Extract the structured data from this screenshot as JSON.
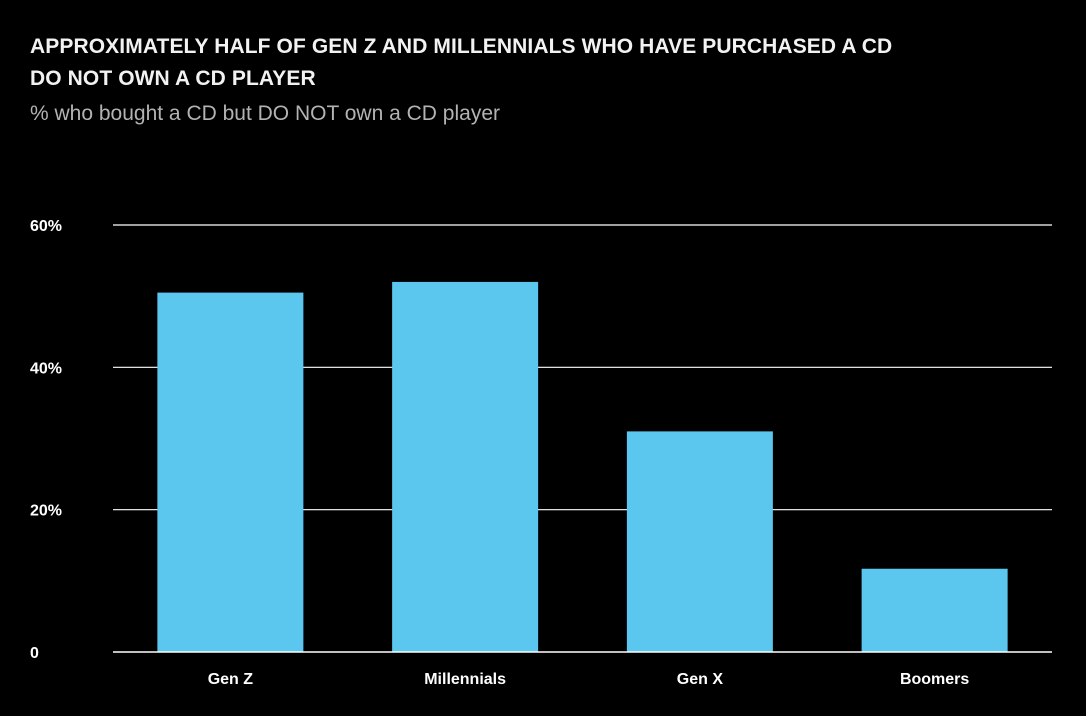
{
  "header": {
    "title_lines": [
      "APPROXIMATELY HALF OF GEN Z AND MILLENNIALS WHO HAVE PURCHASED A CD",
      "DO NOT OWN A CD PLAYER"
    ],
    "subtitle": "% who bought a CD but DO NOT own a CD player"
  },
  "colors": {
    "background": "#000000",
    "bar": "#5bc6ee",
    "grid": "#ffffff",
    "text": "#ffffff",
    "subtitle": "#b3b3b3"
  },
  "chart_data": {
    "type": "bar",
    "title": "APPROXIMATELY HALF OF GEN Z AND MILLENNIALS WHO HAVE PURCHASED A CD DO NOT OWN A CD PLAYER",
    "subtitle": "% who bought a CD but DO NOT own a CD player",
    "xlabel": "",
    "ylabel": "",
    "categories": [
      "Gen Z",
      "Millennials",
      "Gen X",
      "Boomers"
    ],
    "values": [
      50.5,
      52,
      31,
      11.7
    ],
    "ylim": [
      0,
      60
    ],
    "yticks": [
      0,
      20,
      40,
      60
    ],
    "ytick_labels": [
      "0",
      "20%",
      "40%",
      "60%"
    ],
    "grid": true,
    "legend": "none"
  }
}
